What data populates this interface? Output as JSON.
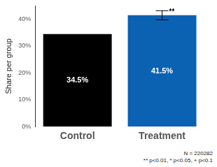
{
  "chart_data": {
    "type": "bar",
    "categories": [
      "Control",
      "Treatment"
    ],
    "values": [
      34.5,
      41.5
    ],
    "value_labels": [
      "34.5%",
      "41.5%"
    ],
    "data_labels": true,
    "colors": [
      "#000000",
      "#0b62b3"
    ],
    "error_bars": [
      null,
      1.7
    ],
    "significance_labels": [
      null,
      "**"
    ],
    "y_label": "Share per group",
    "ylim": [
      0,
      45
    ],
    "yticks": [
      {
        "value": 0,
        "label": "0%"
      },
      {
        "value": 10,
        "label": "10%"
      },
      {
        "value": 20,
        "label": "20%"
      },
      {
        "value": 30,
        "label": "30%"
      },
      {
        "value": 40,
        "label": "40%"
      }
    ],
    "grid": false,
    "notes": [
      "N = 220282",
      "** p<0.01, * p<0.05, + p<0.1"
    ]
  }
}
